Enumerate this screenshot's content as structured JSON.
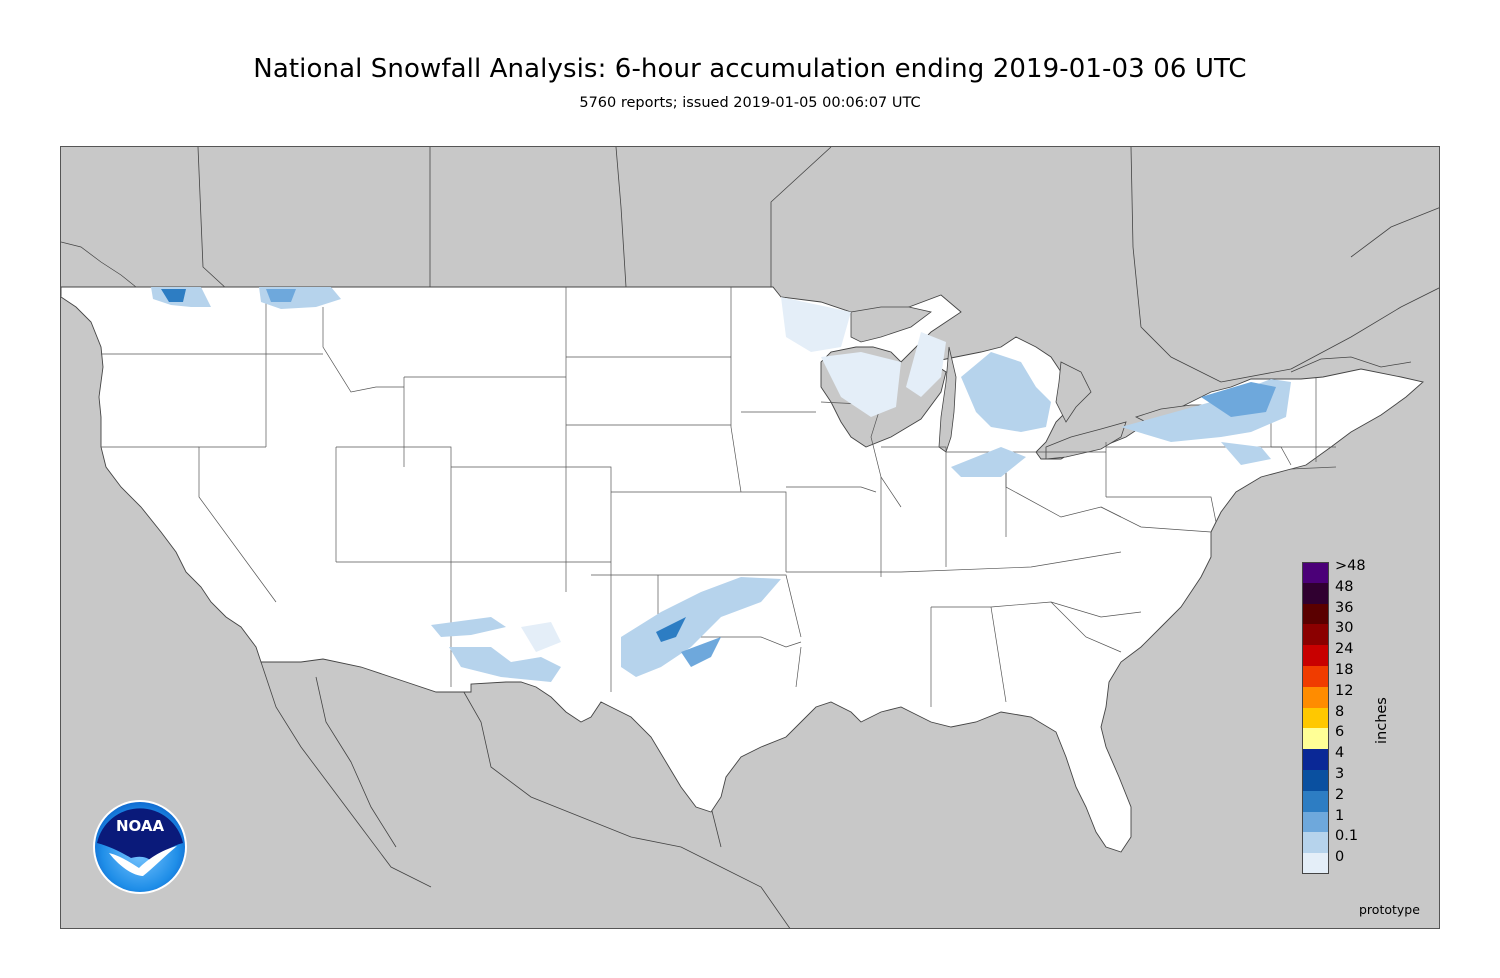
{
  "header": {
    "title": "National Snowfall Analysis: 6-hour accumulation ending 2019-01-03 06 UTC",
    "subtitle": "5760 reports; issued 2019-01-05 00:06:07 UTC"
  },
  "logo": {
    "text": "NOAA",
    "colors": {
      "outer": "#0a1a7a",
      "inner": "#1f8ee8",
      "bird": "#ffffff"
    }
  },
  "map": {
    "colors": {
      "background_land": "#c8c8c8",
      "water": "#c8c8c8",
      "analysis_land": "#ffffff",
      "borders": "#444444"
    }
  },
  "legend": {
    "unit": "inches",
    "items": [
      {
        "label": ">48",
        "color": "#4b0078"
      },
      {
        "label": "48",
        "color": "#300030"
      },
      {
        "label": "36",
        "color": "#5a0000"
      },
      {
        "label": "30",
        "color": "#8b0000"
      },
      {
        "label": "24",
        "color": "#c80000"
      },
      {
        "label": "18",
        "color": "#f03c00"
      },
      {
        "label": "12",
        "color": "#ff8c00"
      },
      {
        "label": "8",
        "color": "#ffc800"
      },
      {
        "label": "6",
        "color": "#ffff96"
      },
      {
        "label": "4",
        "color": "#0a2896"
      },
      {
        "label": "3",
        "color": "#0a50a0"
      },
      {
        "label": "2",
        "color": "#2d7dc3"
      },
      {
        "label": "1",
        "color": "#6ea8dc"
      },
      {
        "label": "0.1",
        "color": "#b6d3ec"
      },
      {
        "label": "0",
        "color": "#e4eef8"
      }
    ]
  },
  "footer": {
    "watermark": "prototype"
  }
}
